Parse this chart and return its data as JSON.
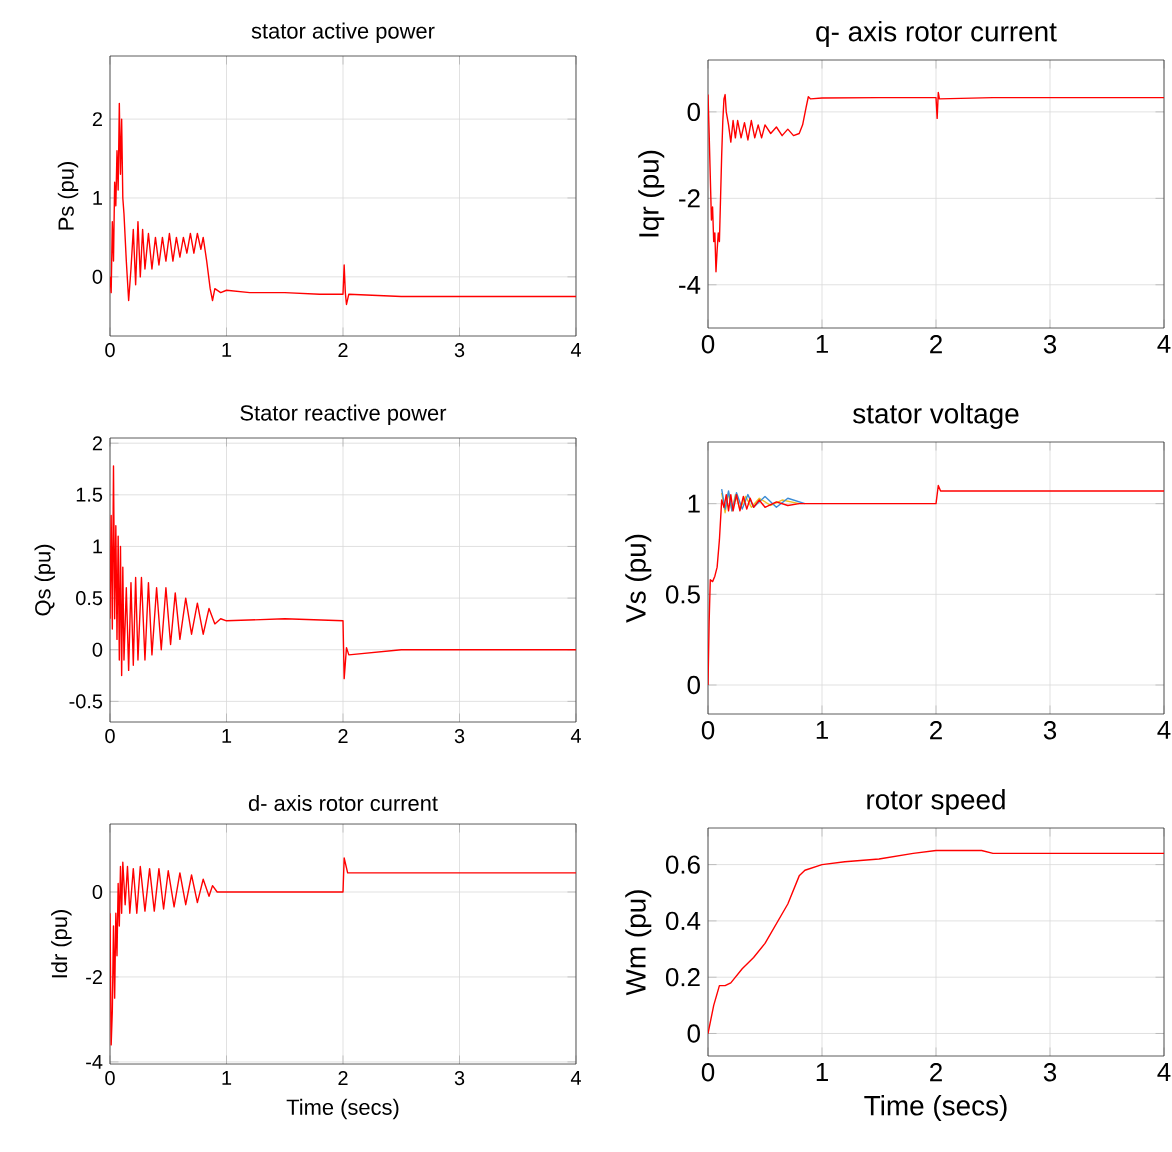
{
  "chart_data": [
    {
      "type": "line",
      "title": "stator active power",
      "ylabel": "Ps (pu)",
      "xlim": [
        0,
        4
      ],
      "xticks": [
        0,
        1,
        2,
        3,
        4
      ],
      "ylim": [
        -0.75,
        2.8
      ],
      "yticks": [
        0,
        1,
        2
      ],
      "grid": true,
      "series": [
        {
          "color": "#ff0000",
          "x": [
            0,
            0.01,
            0.02,
            0.03,
            0.04,
            0.05,
            0.06,
            0.07,
            0.08,
            0.09,
            0.1,
            0.11,
            0.12,
            0.14,
            0.16,
            0.18,
            0.2,
            0.22,
            0.24,
            0.26,
            0.28,
            0.3,
            0.33,
            0.36,
            0.39,
            0.42,
            0.45,
            0.48,
            0.51,
            0.54,
            0.57,
            0.6,
            0.63,
            0.66,
            0.69,
            0.72,
            0.75,
            0.78,
            0.8,
            0.83,
            0.86,
            0.88,
            0.9,
            0.95,
            1.0,
            1.2,
            1.5,
            1.8,
            2.0,
            2.01,
            2.02,
            2.03,
            2.05,
            2.5,
            3.0,
            3.5,
            4.0
          ],
          "values": [
            0,
            -0.2,
            0.7,
            0.2,
            1.2,
            0.9,
            1.6,
            1.1,
            2.2,
            1.3,
            2.0,
            1.0,
            0.8,
            0.2,
            -0.3,
            0.1,
            0.6,
            -0.1,
            0.7,
            0.0,
            0.6,
            0.1,
            0.55,
            0.1,
            0.5,
            0.15,
            0.5,
            0.2,
            0.55,
            0.2,
            0.5,
            0.25,
            0.5,
            0.3,
            0.55,
            0.3,
            0.55,
            0.35,
            0.5,
            0.2,
            -0.15,
            -0.3,
            -0.15,
            -0.2,
            -0.17,
            -0.2,
            -0.2,
            -0.22,
            -0.22,
            0.15,
            -0.2,
            -0.35,
            -0.22,
            -0.25,
            -0.25,
            -0.25,
            -0.25
          ]
        }
      ]
    },
    {
      "type": "line",
      "title": "q- axis rotor current",
      "ylabel": "Iqr (pu)",
      "xlim": [
        0,
        4
      ],
      "xticks": [
        0,
        1,
        2,
        3,
        4
      ],
      "ylim": [
        -5,
        1.2
      ],
      "yticks": [
        -4,
        -2,
        0
      ],
      "grid": true,
      "series": [
        {
          "color": "#ff0000",
          "x": [
            0,
            0.01,
            0.02,
            0.03,
            0.04,
            0.05,
            0.06,
            0.07,
            0.08,
            0.09,
            0.1,
            0.11,
            0.12,
            0.13,
            0.14,
            0.15,
            0.16,
            0.18,
            0.2,
            0.22,
            0.24,
            0.26,
            0.29,
            0.32,
            0.35,
            0.38,
            0.41,
            0.44,
            0.47,
            0.5,
            0.55,
            0.6,
            0.65,
            0.7,
            0.75,
            0.8,
            0.83,
            0.86,
            0.88,
            0.9,
            1.0,
            1.5,
            2.0,
            2.01,
            2.02,
            2.03,
            2.5,
            3.0,
            3.5,
            4.0
          ],
          "values": [
            0.4,
            -0.5,
            -1.5,
            -2.5,
            -2.2,
            -3.0,
            -2.8,
            -3.7,
            -3.2,
            -2.8,
            -3.0,
            -2.0,
            -1.0,
            -0.2,
            0.3,
            0.4,
            0.0,
            -0.3,
            -0.7,
            -0.2,
            -0.6,
            -0.2,
            -0.6,
            -0.25,
            -0.65,
            -0.2,
            -0.6,
            -0.3,
            -0.6,
            -0.3,
            -0.5,
            -0.35,
            -0.55,
            -0.4,
            -0.55,
            -0.5,
            -0.3,
            0.1,
            0.35,
            0.3,
            0.32,
            0.33,
            0.33,
            -0.15,
            0.45,
            0.3,
            0.33,
            0.33,
            0.33,
            0.33
          ]
        }
      ]
    },
    {
      "type": "line",
      "title": "Stator reactive power",
      "ylabel": "Qs (pu)",
      "xlim": [
        0,
        4
      ],
      "xticks": [
        0,
        1,
        2,
        3,
        4
      ],
      "ylim": [
        -0.7,
        2.05
      ],
      "yticks": [
        -0.5,
        0,
        0.5,
        1,
        1.5,
        2
      ],
      "grid": true,
      "series": [
        {
          "color": "#ff0000",
          "x": [
            0,
            0.01,
            0.02,
            0.03,
            0.04,
            0.05,
            0.06,
            0.07,
            0.08,
            0.09,
            0.1,
            0.11,
            0.12,
            0.14,
            0.16,
            0.18,
            0.2,
            0.22,
            0.24,
            0.27,
            0.3,
            0.33,
            0.36,
            0.4,
            0.44,
            0.48,
            0.52,
            0.56,
            0.6,
            0.65,
            0.7,
            0.75,
            0.8,
            0.85,
            0.9,
            0.95,
            1.0,
            1.5,
            2.0,
            2.01,
            2.03,
            2.05,
            2.5,
            3.0,
            3.5,
            4.0
          ],
          "values": [
            0.3,
            1.3,
            0.2,
            1.78,
            0.3,
            1.2,
            0.1,
            1.1,
            -0.1,
            1.0,
            -0.25,
            0.8,
            -0.1,
            0.6,
            -0.2,
            0.65,
            -0.15,
            0.7,
            -0.1,
            0.7,
            -0.1,
            0.65,
            -0.05,
            0.6,
            0.0,
            0.6,
            0.05,
            0.55,
            0.1,
            0.5,
            0.15,
            0.45,
            0.15,
            0.4,
            0.25,
            0.3,
            0.28,
            0.3,
            0.28,
            -0.28,
            0.02,
            -0.05,
            0.0,
            0.0,
            0.0,
            0.0
          ]
        }
      ]
    },
    {
      "type": "line",
      "title": "stator voltage",
      "ylabel": "Vs (pu)",
      "xlim": [
        0,
        4
      ],
      "xticks": [
        0,
        1,
        2,
        3,
        4
      ],
      "ylim": [
        -0.16,
        1.34
      ],
      "yticks": [
        0,
        0.5,
        1
      ],
      "grid": true,
      "series": [
        {
          "color": "#f0c020",
          "x": [
            0.12,
            0.15,
            0.18,
            0.21,
            0.24,
            0.28,
            0.33,
            0.38,
            0.45,
            0.55,
            0.65,
            0.8
          ],
          "values": [
            1.06,
            0.95,
            1.06,
            0.96,
            1.05,
            0.97,
            1.04,
            0.98,
            1.03,
            0.99,
            1.02,
            1.0
          ]
        },
        {
          "color": "#3b8bd4",
          "x": [
            0.12,
            0.15,
            0.18,
            0.21,
            0.25,
            0.3,
            0.35,
            0.4,
            0.5,
            0.6,
            0.7,
            0.85
          ],
          "values": [
            1.08,
            0.97,
            1.07,
            0.96,
            1.06,
            0.97,
            1.05,
            0.98,
            1.04,
            0.98,
            1.03,
            1.0
          ]
        },
        {
          "color": "#ff0000",
          "x": [
            0,
            0.01,
            0.02,
            0.04,
            0.06,
            0.08,
            0.1,
            0.12,
            0.14,
            0.16,
            0.18,
            0.2,
            0.22,
            0.25,
            0.28,
            0.31,
            0.34,
            0.37,
            0.4,
            0.45,
            0.5,
            0.6,
            0.7,
            0.8,
            1.0,
            1.5,
            2.0,
            2.02,
            2.04,
            2.5,
            3.0,
            4.0
          ],
          "values": [
            0,
            0.35,
            0.58,
            0.57,
            0.6,
            0.65,
            0.8,
            1.02,
            0.98,
            1.05,
            0.96,
            1.05,
            0.96,
            1.05,
            0.96,
            1.04,
            0.97,
            1.03,
            0.98,
            1.02,
            0.98,
            1.01,
            0.99,
            1.0,
            1.0,
            1.0,
            1.0,
            1.1,
            1.07,
            1.07,
            1.07,
            1.07
          ]
        }
      ]
    },
    {
      "type": "line",
      "title": "d- axis rotor current",
      "ylabel": "Idr (pu)",
      "xlabel": "Time (secs)",
      "xlim": [
        0,
        4
      ],
      "xticks": [
        0,
        1,
        2,
        3,
        4
      ],
      "ylim": [
        -4.05,
        1.6
      ],
      "yticks": [
        -4,
        -2,
        0
      ],
      "grid": true,
      "series": [
        {
          "color": "#ff0000",
          "x": [
            0,
            0.01,
            0.02,
            0.03,
            0.04,
            0.05,
            0.06,
            0.07,
            0.08,
            0.09,
            0.1,
            0.11,
            0.13,
            0.15,
            0.17,
            0.2,
            0.23,
            0.26,
            0.3,
            0.34,
            0.38,
            0.42,
            0.46,
            0.5,
            0.55,
            0.6,
            0.65,
            0.7,
            0.75,
            0.8,
            0.85,
            0.88,
            0.92,
            1.0,
            1.5,
            2.0,
            2.01,
            2.04,
            2.5,
            3.0,
            3.5,
            4.0
          ],
          "values": [
            -0.5,
            -3.6,
            -2.8,
            -0.8,
            -2.5,
            -0.5,
            -1.5,
            0.2,
            -0.8,
            0.6,
            -0.5,
            0.7,
            -0.3,
            0.6,
            -0.5,
            0.55,
            -0.5,
            0.6,
            -0.45,
            0.55,
            -0.45,
            0.55,
            -0.4,
            0.5,
            -0.35,
            0.45,
            -0.3,
            0.4,
            -0.25,
            0.3,
            -0.1,
            0.15,
            0.0,
            0.0,
            0.0,
            0.0,
            0.8,
            0.45,
            0.45,
            0.45,
            0.45,
            0.45
          ]
        }
      ]
    },
    {
      "type": "line",
      "title": "rotor speed",
      "ylabel": "Wm (pu)",
      "xlabel": "Time (secs)",
      "xlim": [
        0,
        4
      ],
      "xticks": [
        0,
        1,
        2,
        3,
        4
      ],
      "ylim": [
        -0.08,
        0.73
      ],
      "yticks": [
        0,
        0.2,
        0.4,
        0.6
      ],
      "grid": true,
      "series": [
        {
          "color": "#ff0000",
          "x": [
            0,
            0.05,
            0.1,
            0.15,
            0.2,
            0.3,
            0.4,
            0.5,
            0.6,
            0.7,
            0.8,
            0.85,
            1.0,
            1.2,
            1.5,
            1.8,
            2.0,
            2.2,
            2.4,
            2.5,
            3.0,
            4.0
          ],
          "values": [
            0,
            0.1,
            0.17,
            0.17,
            0.18,
            0.23,
            0.27,
            0.32,
            0.39,
            0.46,
            0.56,
            0.58,
            0.6,
            0.61,
            0.62,
            0.64,
            0.65,
            0.65,
            0.65,
            0.64,
            0.64,
            0.64
          ]
        }
      ]
    }
  ]
}
